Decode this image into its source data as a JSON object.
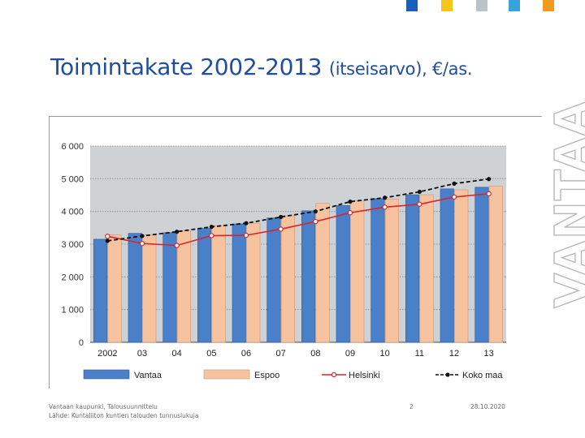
{
  "slide": {
    "title_main": "Toimintakate 2002-2013",
    "title_sub": "(itseisarvo), €/as.",
    "brand": "VANTAA",
    "footer_line1": "Vantaan kaupunki, Talousuunnittelu",
    "footer_line2": "Lähde: Kuntaliiton kuntien talouden tunnuslukuja",
    "page_number": "2",
    "date": "28.10.2020"
  },
  "colors": {
    "title": "#1f4e9c",
    "vantaa": "#4a7fc9",
    "espoo": "#f7c39f",
    "helsinki": "#d9252a",
    "koko_maa": "#111111",
    "plot_bg": "#cfd2d4",
    "top_squares": [
      "#1b60b8",
      "#f5c518",
      "#b9c3cc",
      "#36a4d8",
      "#f19a1e"
    ]
  },
  "chart_data": {
    "type": "bar",
    "title": "",
    "xlabel": "",
    "ylabel": "",
    "ylim": [
      0,
      6000
    ],
    "y_ticks": [
      0,
      1000,
      2000,
      3000,
      4000,
      5000,
      6000
    ],
    "y_tick_labels": [
      "0",
      "1 000",
      "2 000",
      "3 000",
      "4 000",
      "5 000",
      "6 000"
    ],
    "grid": true,
    "legend_position": "bottom",
    "categories": [
      "2002",
      "03",
      "04",
      "05",
      "06",
      "07",
      "08",
      "09",
      "10",
      "11",
      "12",
      "13"
    ],
    "series": [
      {
        "name": "Vantaa",
        "kind": "bar",
        "values": [
          3150,
          3330,
          3350,
          3480,
          3620,
          3800,
          4020,
          4180,
          4390,
          4510,
          4690,
          4740
        ]
      },
      {
        "name": "Espoo",
        "kind": "bar",
        "values": [
          3280,
          3280,
          3400,
          3560,
          3640,
          3870,
          4250,
          4320,
          4380,
          4510,
          4660,
          4780
        ]
      },
      {
        "name": "Helsinki",
        "kind": "line",
        "values": [
          3240,
          3020,
          2960,
          3260,
          3270,
          3460,
          3690,
          3960,
          4130,
          4220,
          4440,
          4540
        ]
      },
      {
        "name": "Koko maa",
        "kind": "line",
        "values": [
          3100,
          3250,
          3380,
          3530,
          3640,
          3830,
          4000,
          4300,
          4420,
          4600,
          4850,
          4990
        ]
      }
    ]
  }
}
